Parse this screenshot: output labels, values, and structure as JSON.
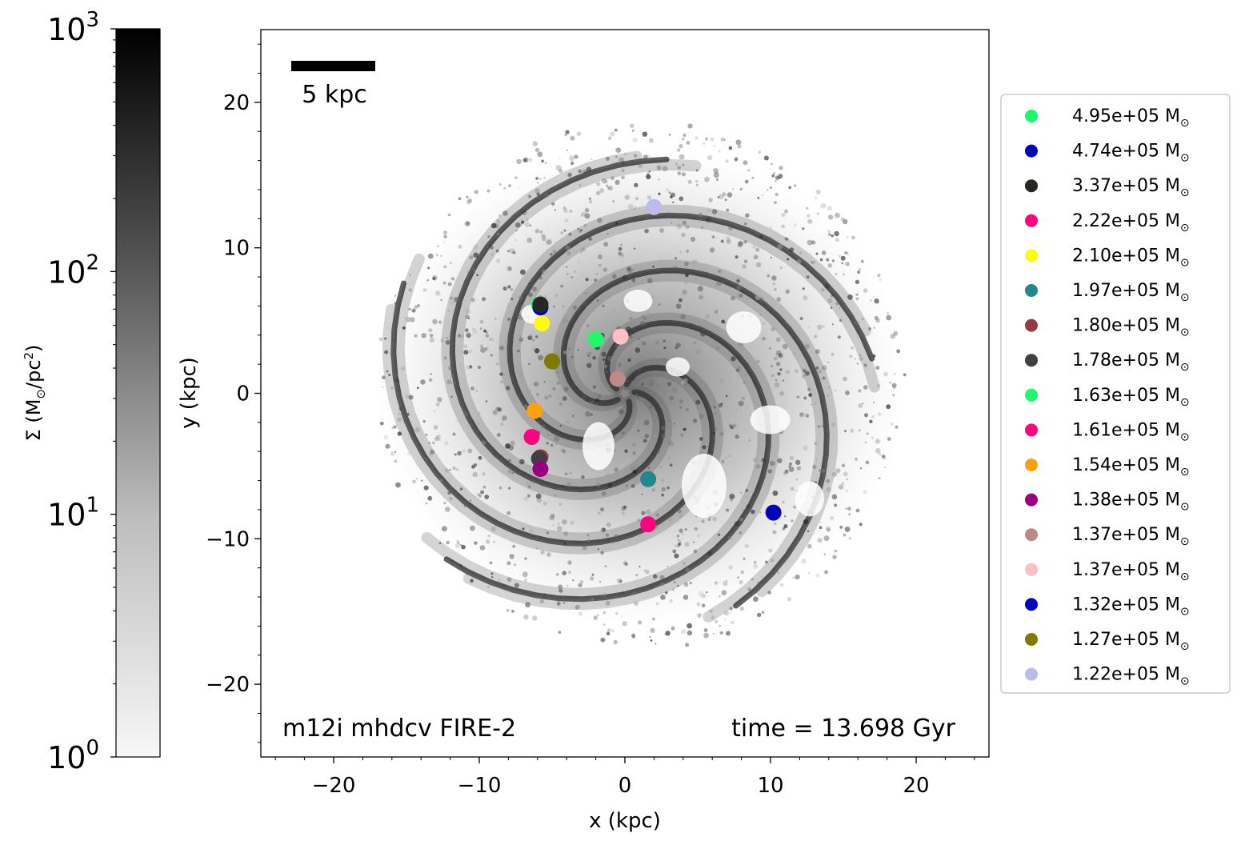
{
  "chart_data": {
    "type": "scatter",
    "background": "galaxy gas surface density map (grayscale)",
    "colorbar": {
      "label_sigma": "Σ (M",
      "label_unit_open": "/pc",
      "label_unit_close": ")",
      "scale": "log",
      "range": [
        1,
        1000
      ],
      "ticks": [
        {
          "base": "10",
          "exp": "0",
          "value": 1
        },
        {
          "base": "10",
          "exp": "1",
          "value": 10
        },
        {
          "base": "10",
          "exp": "2",
          "value": 100
        },
        {
          "base": "10",
          "exp": "3",
          "value": 1000
        }
      ],
      "color_low": "#f7f7f7",
      "color_high": "#000000"
    },
    "xlabel": "x (kpc)",
    "ylabel": "y (kpc)",
    "xlim": [
      -25,
      25
    ],
    "ylim": [
      -25,
      25
    ],
    "xticks": [
      -20,
      -10,
      0,
      10,
      20
    ],
    "yticks": [
      -20,
      -10,
      0,
      10,
      20
    ],
    "xtick_labels": [
      "−20",
      "−10",
      "0",
      "10",
      "20"
    ],
    "ytick_labels": [
      "−20",
      "−10",
      "0",
      "10",
      "20"
    ],
    "scale_bar": {
      "label": "5 kpc",
      "length": 5
    },
    "annotations": {
      "simulation": "m12i mhdcv FIRE-2",
      "time": "time = 13.698 Gyr"
    },
    "legend_placement": "right, outside plot",
    "legend_unit": "M",
    "series": [
      {
        "name": "4.95e+05",
        "color": "#1cf96a",
        "x": -5.9,
        "y": 6.1
      },
      {
        "name": "4.74e+05",
        "color": "#0005b9",
        "x": -5.8,
        "y": 5.9
      },
      {
        "name": "3.37e+05",
        "color": "#262722",
        "x": -5.8,
        "y": 6.1
      },
      {
        "name": "2.22e+05",
        "color": "#ff0380",
        "x": 1.6,
        "y": -9.0
      },
      {
        "name": "2.10e+05",
        "color": "#fffa14",
        "x": -5.7,
        "y": 4.8
      },
      {
        "name": "1.97e+05",
        "color": "#238889",
        "x": 1.6,
        "y": -5.9
      },
      {
        "name": "1.80e+05",
        "color": "#973b41",
        "x": -5.8,
        "y": -4.4
      },
      {
        "name": "1.78e+05",
        "color": "#404040",
        "x": -5.9,
        "y": -4.5
      },
      {
        "name": "1.63e+05",
        "color": "#1cf96a",
        "x": -2.0,
        "y": 3.7
      },
      {
        "name": "1.61e+05",
        "color": "#ff0380",
        "x": -6.4,
        "y": -3.0
      },
      {
        "name": "1.54e+05",
        "color": "#ffa00e",
        "x": -6.2,
        "y": -1.2
      },
      {
        "name": "1.38e+05",
        "color": "#97007e",
        "x": -5.8,
        "y": -5.2
      },
      {
        "name": "1.37e+05",
        "color": "#bd8a87",
        "x": -0.5,
        "y": 1.0
      },
      {
        "name": "1.37e+05",
        "color": "#ffbfc4",
        "x": -0.3,
        "y": 3.9
      },
      {
        "name": "1.32e+05",
        "color": "#0005b9",
        "x": 10.2,
        "y": -8.2
      },
      {
        "name": "1.27e+05",
        "color": "#7e7c00",
        "x": -5.0,
        "y": 2.2
      },
      {
        "name": "1.22e+05",
        "color": "#bbbceb",
        "x": 2.0,
        "y": 12.8
      }
    ]
  }
}
